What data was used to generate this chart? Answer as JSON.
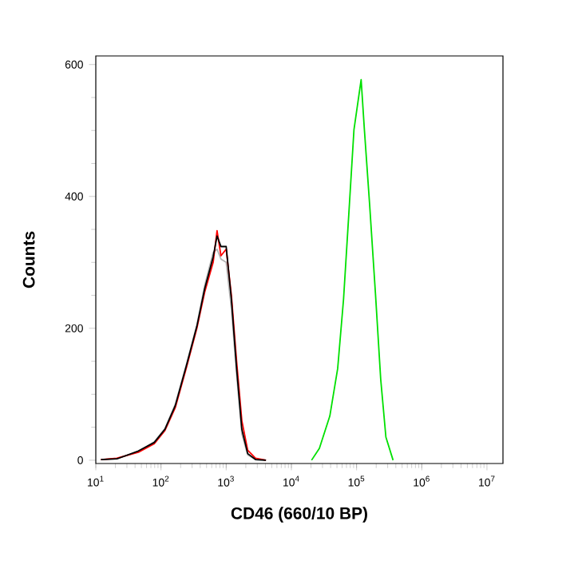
{
  "chart_data": {
    "type": "line",
    "xlabel": "CD46 (660/10 BP)",
    "ylabel": "Counts",
    "log": "x",
    "grid": false,
    "marker": "none",
    "line_style": "solid",
    "xlim": [
      10,
      17600000
    ],
    "ylim": [
      -5,
      613
    ],
    "xticks": [
      {
        "value": 10,
        "label": "10$^{1}$"
      },
      {
        "value": 100,
        "label": "10$^{2}$"
      },
      {
        "value": 1000,
        "label": "10$^{3}$"
      },
      {
        "value": 10000,
        "label": "10$^{4}$"
      },
      {
        "value": 100000,
        "label": "10$^{5}$"
      },
      {
        "value": 1000000,
        "label": "10$^{6}$"
      },
      {
        "value": 10000000,
        "label": "10$^{7}$"
      }
    ],
    "yticks": [
      0,
      200,
      400,
      600
    ],
    "x": [
      12,
      21,
      45,
      79,
      115,
      166,
      245,
      355,
      468,
      631,
      724,
      832,
      1000,
      1202,
      1445,
      1738,
      2138,
      2818,
      4074
    ],
    "series": [
      {
        "color": "#b4b4b4",
        "values": [
          1,
          2,
          13,
          28,
          48,
          85,
          145,
          205,
          265,
          315,
          320,
          305,
          300,
          230,
          130,
          40,
          8,
          1,
          0
        ]
      },
      {
        "color": "#ff0000",
        "values": [
          1,
          3,
          12,
          25,
          45,
          80,
          140,
          200,
          255,
          300,
          348,
          310,
          320,
          250,
          150,
          60,
          15,
          3,
          0
        ]
      },
      {
        "color": "#000000",
        "values": [
          1,
          2,
          14,
          27,
          47,
          83,
          143,
          203,
          260,
          308,
          340,
          324,
          324,
          244,
          139,
          47,
          10,
          1,
          0
        ]
      },
      {
        "color": "#00e000",
        "x": [
          20400,
          26900,
          38900,
          51300,
          63100,
          75900,
          91200,
          117500,
          131800,
          158500,
          195000,
          234400,
          281800,
          363100
        ],
        "values": [
          0,
          18,
          67,
          139,
          244,
          372,
          501,
          577,
          501,
          388,
          252,
          123,
          35,
          0
        ]
      }
    ]
  }
}
